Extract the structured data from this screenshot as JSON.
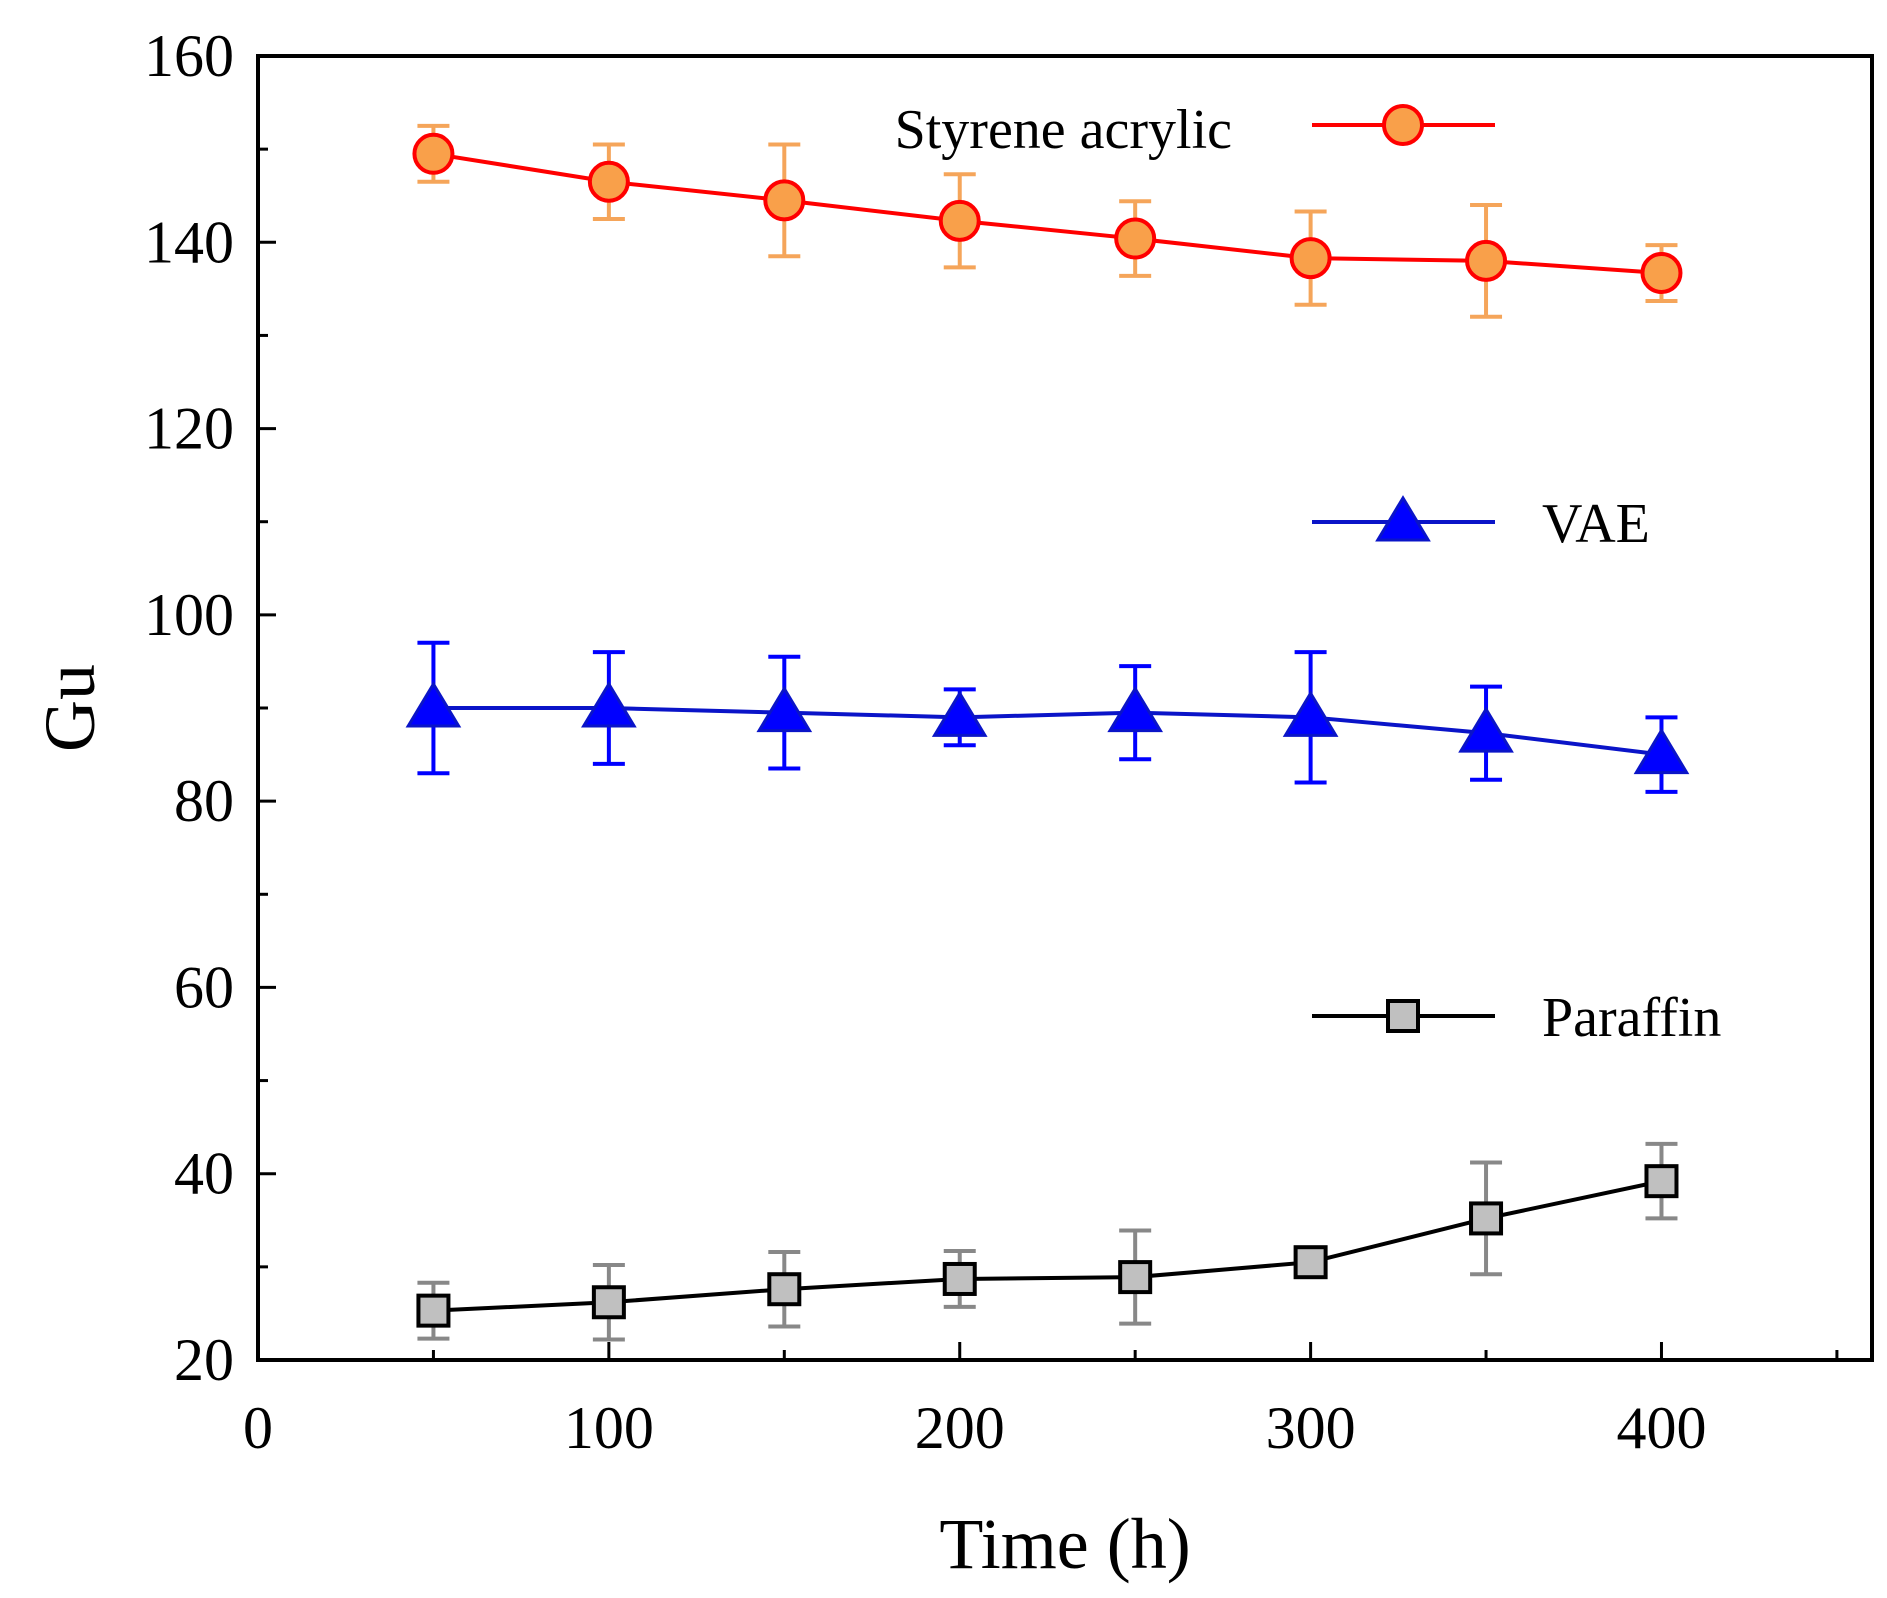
{
  "chart_data": {
    "type": "line",
    "title": "",
    "xlabel": "Time (h)",
    "ylabel": "Gu",
    "xlim": [
      0,
      460
    ],
    "ylim": [
      20,
      160
    ],
    "xticks": [
      0,
      100,
      200,
      300,
      400
    ],
    "yticks": [
      20,
      40,
      60,
      80,
      100,
      120,
      140,
      160
    ],
    "xtick_labels": [
      "0",
      "100",
      "200",
      "300",
      "400"
    ],
    "ytick_labels": [
      "20",
      "40",
      "60",
      "80",
      "100",
      "120",
      "140",
      "160"
    ],
    "grid": false,
    "legend": "right",
    "x": [
      50,
      100,
      150,
      200,
      250,
      300,
      350,
      400
    ],
    "series": [
      {
        "name": "Styrene acrylic",
        "marker": "circle",
        "line_color": "#ff0000",
        "marker_color": "#f9a04a",
        "error_color": "#f5a55a",
        "values": [
          149.5,
          146.5,
          144.5,
          142.3,
          140.4,
          138.3,
          138.0,
          136.7
        ],
        "errors": [
          3,
          4,
          6,
          5,
          4,
          5,
          6,
          3
        ]
      },
      {
        "name": "VAE",
        "marker": "triangle",
        "line_color": "#0a14c8",
        "marker_color": "#0000ff",
        "error_color": "#0000ff",
        "values": [
          90,
          90,
          89.5,
          89,
          89.5,
          89,
          87.3,
          85
        ],
        "errors": [
          7,
          6,
          6,
          3,
          5,
          7,
          5,
          4
        ]
      },
      {
        "name": "Paraffin",
        "marker": "square",
        "line_color": "#000000",
        "marker_color": "#c0c0c0",
        "error_color": "#888888",
        "values": [
          25.3,
          26.2,
          27.6,
          28.7,
          28.9,
          30.5,
          35.2,
          39.2
        ],
        "errors": [
          3,
          4,
          4,
          3,
          5,
          1,
          6,
          4
        ]
      }
    ]
  }
}
